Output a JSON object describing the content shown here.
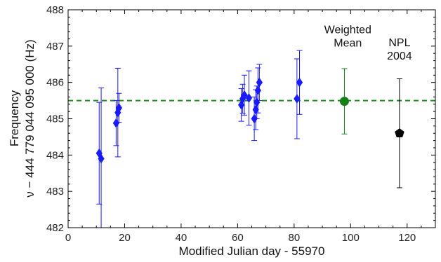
{
  "chart_data": {
    "type": "scatter",
    "title": "",
    "xlabel": "Modified Julian day - 55970",
    "ylabel": "Frequency",
    "ylabel_line2": "ν − 444 779 044 095 000 (Hz)",
    "xlim": [
      0,
      130
    ],
    "ylim": [
      482,
      488
    ],
    "xticks": [
      0,
      20,
      40,
      60,
      80,
      100,
      120
    ],
    "yticks": [
      482,
      483,
      484,
      485,
      486,
      487,
      488
    ],
    "grid": false,
    "reference_line": {
      "y": 485.5,
      "color": "#1a8a1a",
      "style": "dashed"
    },
    "series": [
      {
        "marker": "diamond",
        "color": "#1a1aff",
        "points": [
          {
            "x": 11.0,
            "y": 484.05,
            "err": 1.4
          },
          {
            "x": 11.7,
            "y": 483.9,
            "err": 1.95
          },
          {
            "x": 17.0,
            "y": 484.88,
            "err": 0.62
          },
          {
            "x": 17.6,
            "y": 485.17,
            "err": 1.22
          },
          {
            "x": 18.0,
            "y": 485.3,
            "err": 0.4
          },
          {
            "x": 61.3,
            "y": 485.38,
            "err": 0.45
          },
          {
            "x": 61.8,
            "y": 485.55,
            "err": 0.4
          },
          {
            "x": 62.4,
            "y": 485.65,
            "err": 0.55
          },
          {
            "x": 64.0,
            "y": 485.57,
            "err": 0.75
          },
          {
            "x": 65.9,
            "y": 485.0,
            "err": 0.6
          },
          {
            "x": 66.4,
            "y": 485.25,
            "err": 0.55
          },
          {
            "x": 66.8,
            "y": 485.45,
            "err": 0.45
          },
          {
            "x": 67.2,
            "y": 485.78,
            "err": 0.62
          },
          {
            "x": 67.7,
            "y": 486.0,
            "err": 0.5
          },
          {
            "x": 81.0,
            "y": 485.55,
            "err": 1.1
          },
          {
            "x": 81.9,
            "y": 486.0,
            "err": 0.88
          }
        ]
      },
      {
        "marker": "circle",
        "color": "#158015",
        "points": [
          {
            "x": 97.8,
            "y": 485.48,
            "err": 0.9
          }
        ]
      },
      {
        "marker": "pentagon",
        "color": "#000000",
        "points": [
          {
            "x": 117.3,
            "y": 484.6,
            "err": 1.5
          }
        ]
      }
    ],
    "annotations": [
      {
        "lines": [
          "Weighted",
          "Mean"
        ],
        "x": 99.0,
        "y": 487.35
      },
      {
        "lines": [
          "NPL",
          "2004"
        ],
        "x": 117.3,
        "y": 487.0
      }
    ]
  }
}
